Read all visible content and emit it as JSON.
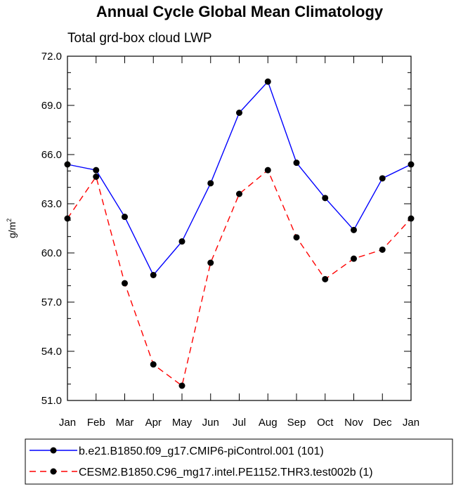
{
  "chart_data": {
    "type": "line",
    "title": "Annual Cycle Global Mean Climatology",
    "subtitle": "Total grd-box cloud LWP",
    "ylabel": "g/m",
    "ylabel_sup": "2",
    "ylim": [
      51.0,
      72.0
    ],
    "yticks": [
      "51.0",
      "54.0",
      "57.0",
      "60.0",
      "63.0",
      "66.0",
      "69.0",
      "72.0"
    ],
    "yminor_step": 1.0,
    "categories": [
      "Jan",
      "Feb",
      "Mar",
      "Apr",
      "May",
      "Jun",
      "Jul",
      "Aug",
      "Sep",
      "Oct",
      "Nov",
      "Dec",
      "Jan"
    ],
    "series": [
      {
        "name": "b.e21.B1850.f09_g17.CMIP6-piControl.001 (101)",
        "color": "#0000ff",
        "style": "solid",
        "values": [
          65.4,
          65.05,
          62.2,
          58.65,
          60.7,
          64.25,
          68.55,
          70.45,
          65.5,
          63.35,
          61.4,
          64.55,
          65.4
        ]
      },
      {
        "name": "CESM2.B1850.C96_mg17.intel.PE1152.THR3.test002b (1)",
        "color": "#ff0000",
        "style": "dashed",
        "values": [
          62.1,
          64.65,
          58.15,
          53.2,
          51.9,
          59.4,
          63.6,
          65.05,
          60.95,
          58.4,
          59.65,
          60.2,
          62.1
        ]
      }
    ]
  }
}
